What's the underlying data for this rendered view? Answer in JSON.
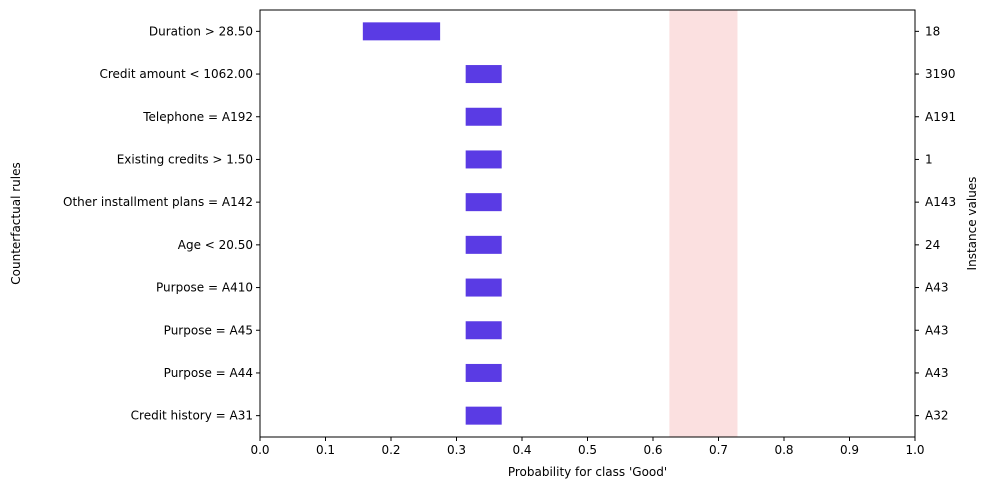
{
  "chart_data": {
    "type": "bar",
    "orientation": "horizontal",
    "title": "",
    "xlabel": "Probability for class 'Good'",
    "ylabel": "Counterfactual rules",
    "y2label": "Instance values",
    "xlim": [
      0.0,
      1.0
    ],
    "xticks": [
      "0.0",
      "0.1",
      "0.2",
      "0.3",
      "0.4",
      "0.5",
      "0.6",
      "0.7",
      "0.8",
      "0.9",
      "1.0"
    ],
    "grid": false,
    "bar_color": "#5a3be4",
    "band_color": "#fbe0e0",
    "reference_band": [
      0.625,
      0.729
    ],
    "rules": [
      {
        "label": "Duration > 28.50",
        "low": 0.157,
        "high": 0.275,
        "instance_value": "18"
      },
      {
        "label": "Credit amount < 1062.00",
        "low": 0.314,
        "high": 0.369,
        "instance_value": "3190"
      },
      {
        "label": "Telephone = A192",
        "low": 0.314,
        "high": 0.369,
        "instance_value": "A191"
      },
      {
        "label": "Existing credits > 1.50",
        "low": 0.314,
        "high": 0.369,
        "instance_value": "1"
      },
      {
        "label": "Other installment plans = A142",
        "low": 0.314,
        "high": 0.369,
        "instance_value": "A143"
      },
      {
        "label": "Age < 20.50",
        "low": 0.314,
        "high": 0.369,
        "instance_value": "24"
      },
      {
        "label": "Purpose = A410",
        "low": 0.314,
        "high": 0.369,
        "instance_value": "A43"
      },
      {
        "label": "Purpose = A45",
        "low": 0.314,
        "high": 0.369,
        "instance_value": "A43"
      },
      {
        "label": "Purpose = A44",
        "low": 0.314,
        "high": 0.369,
        "instance_value": "A43"
      },
      {
        "label": "Credit history = A31",
        "low": 0.314,
        "high": 0.369,
        "instance_value": "A32"
      }
    ]
  }
}
